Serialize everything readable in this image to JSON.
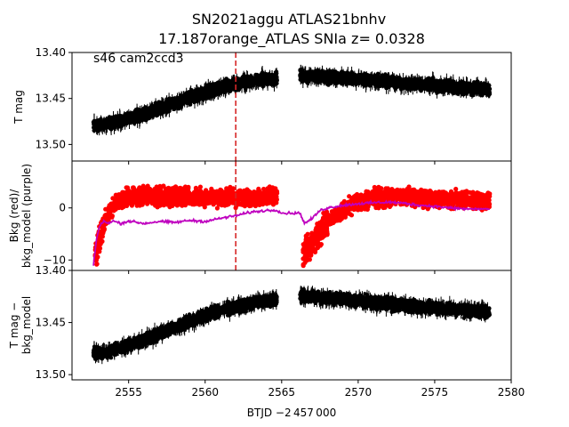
{
  "title": {
    "line1": "SN2021aggu  ATLAS21bnhv",
    "line2": "17.187orange_ATLAS SNIa z= 0.0328"
  },
  "xlabel": "BTJD −2 457 000",
  "colors": {
    "data": "#000000",
    "bkg": "#ff0000",
    "bkg_model": "#bf00bf",
    "marker_line": "#d62728"
  },
  "chart_data": [
    {
      "type": "scatter",
      "panel": "top",
      "annotation": "s46 cam2ccd3",
      "ylabel": "T mag",
      "y_inverted": true,
      "xlim": [
        2551.3,
        2580
      ],
      "ylim": [
        13.518,
        13.4
      ],
      "yticks": [
        "13.40",
        "13.45",
        "13.50"
      ],
      "yticks_values": [
        13.4,
        13.45,
        13.5
      ],
      "vline_x": 2562.0,
      "series": [
        {
          "color": "black",
          "segments": [
            {
              "x": [
                2552.7,
                2553.5,
                2554.5,
                2555.5,
                2556.5,
                2557.5,
                2558.5,
                2559.5,
                2560.5,
                2561.5,
                2562.5,
                2563.5,
                2564.7
              ],
              "y": [
                13.478,
                13.479,
                13.474,
                13.469,
                13.464,
                13.458,
                13.452,
                13.446,
                13.441,
                13.436,
                13.433,
                13.43,
                13.428
              ]
            },
            {
              "x": [
                2566.2,
                2567.5,
                2569.0,
                2570.5,
                2572.0,
                2573.5,
                2575.0,
                2576.5,
                2578.6
              ],
              "y": [
                13.425,
                13.426,
                13.428,
                13.43,
                13.432,
                13.434,
                13.436,
                13.438,
                13.44
              ]
            }
          ]
        }
      ]
    },
    {
      "type": "scatter",
      "panel": "middle",
      "ylabel": "Bkg (red)/\nbkg_model (purple)",
      "xlim": [
        2551.3,
        2580
      ],
      "ylim": [
        -12,
        9
      ],
      "yticks": [
        "−10",
        "0"
      ],
      "yticks_values": [
        -10,
        0
      ],
      "vline_x": 2562.0,
      "series": [
        {
          "color": "red",
          "segments": [
            {
              "x": [
                2552.8,
                2553.0,
                2553.3,
                2553.6,
                2554.0,
                2554.5,
                2555.0,
                2556.0,
                2557.0,
                2558.0,
                2559.0,
                2560.0,
                2561.0,
                2562.0,
                2563.0,
                2564.0,
                2564.7
              ],
              "y": [
                -9.5,
                -7.0,
                -4.0,
                -1.5,
                0.5,
                1.5,
                2.0,
                2.3,
                2.4,
                2.3,
                2.2,
                2.0,
                1.8,
                1.9,
                2.0,
                2.2,
                2.4
              ]
            },
            {
              "x": [
                2566.4,
                2566.8,
                2567.2,
                2567.6,
                2568.0,
                2568.5,
                2569.0,
                2569.5,
                2570.0,
                2571.0,
                2572.0,
                2573.0,
                2574.0,
                2575.0,
                2576.0,
                2577.0,
                2578.6
              ],
              "y": [
                -8.5,
                -7.5,
                -6.0,
                -4.5,
                -3.0,
                -1.5,
                -0.5,
                0.5,
                1.0,
                1.8,
                2.0,
                2.1,
                2.0,
                1.9,
                1.7,
                1.5,
                1.3
              ]
            }
          ]
        },
        {
          "color": "purple",
          "segments": [
            {
              "x": [
                2552.7,
                2552.9,
                2553.1,
                2553.4,
                2553.7,
                2554.0,
                2554.5,
                2555.0,
                2556.0,
                2557.0,
                2558.0,
                2559.0,
                2560.0,
                2561.0,
                2562.0,
                2563.0,
                2564.0,
                2564.7,
                2565.0,
                2566.2
              ],
              "y": [
                -11.0,
                -6.0,
                -3.5,
                -2.5,
                -3.0,
                -2.5,
                -3.0,
                -2.5,
                -3.0,
                -2.6,
                -2.8,
                -2.4,
                -2.6,
                -2.0,
                -1.5,
                -0.8,
                -0.5,
                -0.4,
                -1.0,
                -1.0
              ]
            },
            {
              "x": [
                2566.2,
                2566.5,
                2567.0,
                2567.5,
                2568.0,
                2569.0,
                2570.0,
                2571.0,
                2572.0,
                2573.0,
                2574.0,
                2575.0,
                2576.0,
                2577.0,
                2578.6
              ],
              "y": [
                -1.0,
                -3.0,
                -2.0,
                -0.5,
                0.0,
                0.5,
                0.8,
                1.0,
                1.1,
                0.9,
                0.5,
                0.3,
                0.0,
                -0.2,
                -0.2
              ]
            }
          ]
        }
      ]
    },
    {
      "type": "scatter",
      "panel": "bottom",
      "ylabel": "T mag −\nbkg_model",
      "y_inverted": true,
      "xlim": [
        2551.3,
        2580
      ],
      "ylim": [
        13.505,
        13.4
      ],
      "yticks": [
        "13.40",
        "13.45",
        "13.50"
      ],
      "yticks_values": [
        13.4,
        13.45,
        13.5
      ],
      "xticks": [
        "2555",
        "2560",
        "2565",
        "2570",
        "2575",
        "2580"
      ],
      "xticks_values": [
        2555,
        2560,
        2565,
        2570,
        2575,
        2580
      ],
      "series": [
        {
          "color": "black",
          "segments": [
            {
              "x": [
                2552.7,
                2553.5,
                2554.5,
                2555.5,
                2556.5,
                2557.5,
                2558.5,
                2559.5,
                2560.5,
                2561.5,
                2562.5,
                2563.5,
                2564.7
              ],
              "y": [
                13.478,
                13.479,
                13.474,
                13.469,
                13.464,
                13.458,
                13.452,
                13.446,
                13.441,
                13.436,
                13.433,
                13.43,
                13.428
              ]
            },
            {
              "x": [
                2566.2,
                2567.5,
                2569.0,
                2570.5,
                2572.0,
                2573.5,
                2575.0,
                2576.5,
                2578.6
              ],
              "y": [
                13.425,
                13.426,
                13.428,
                13.43,
                13.432,
                13.434,
                13.436,
                13.438,
                13.44
              ]
            }
          ]
        }
      ]
    }
  ]
}
